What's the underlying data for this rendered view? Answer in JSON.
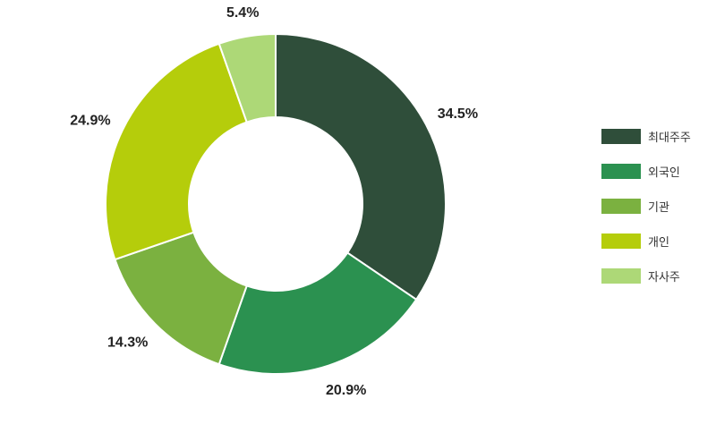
{
  "chart_data": {
    "type": "pie",
    "donut": true,
    "start_angle_deg": 0,
    "direction": "clockwise",
    "categories": [
      "최대주주",
      "외국인",
      "기관",
      "개인",
      "자사주"
    ],
    "values": [
      34.5,
      20.9,
      14.3,
      24.9,
      5.4
    ],
    "data_labels": [
      "34.5%",
      "20.9%",
      "14.3%",
      "24.9%",
      "5.4%"
    ],
    "colors": [
      "#2f4e3a",
      "#2b9150",
      "#7bb140",
      "#b5cd0b",
      "#add877"
    ],
    "legend_position": "right"
  }
}
